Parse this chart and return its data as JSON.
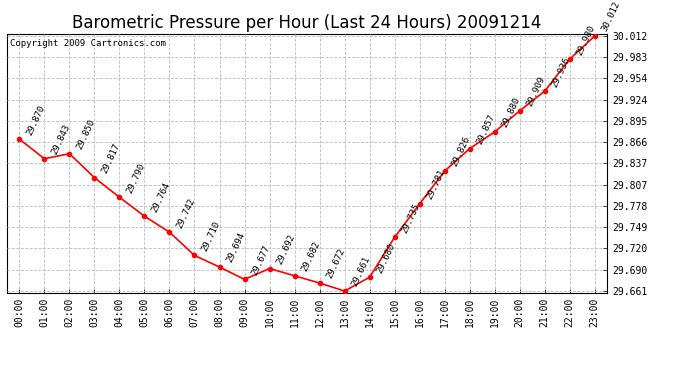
{
  "title": "Barometric Pressure per Hour (Last 24 Hours) 20091214",
  "copyright": "Copyright 2009 Cartronics.com",
  "hours": [
    "00:00",
    "01:00",
    "02:00",
    "03:00",
    "04:00",
    "05:00",
    "06:00",
    "07:00",
    "08:00",
    "09:00",
    "10:00",
    "11:00",
    "12:00",
    "13:00",
    "14:00",
    "15:00",
    "16:00",
    "17:00",
    "18:00",
    "19:00",
    "20:00",
    "21:00",
    "22:00",
    "23:00"
  ],
  "values": [
    29.87,
    29.843,
    29.85,
    29.817,
    29.79,
    29.764,
    29.742,
    29.71,
    29.694,
    29.677,
    29.692,
    29.682,
    29.672,
    29.661,
    29.68,
    29.735,
    29.781,
    29.826,
    29.857,
    29.88,
    29.909,
    29.936,
    29.98,
    30.012
  ],
  "ylim_min": 29.659,
  "ylim_max": 30.015,
  "yticks": [
    29.661,
    29.69,
    29.72,
    29.749,
    29.778,
    29.807,
    29.837,
    29.866,
    29.895,
    29.924,
    29.954,
    29.983,
    30.012
  ],
  "line_color": "red",
  "marker_color": "red",
  "bg_color": "white",
  "grid_color": "#bbbbbb",
  "title_fontsize": 12,
  "label_fontsize": 7,
  "annotation_fontsize": 6.5,
  "copyright_fontsize": 6.5
}
